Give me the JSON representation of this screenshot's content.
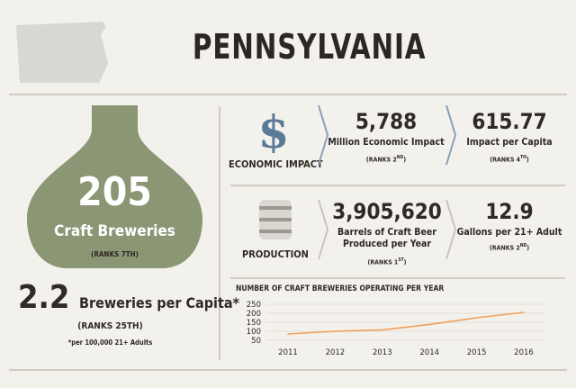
{
  "title": "PENNSYLVANIA",
  "breweries": {
    "count": "205",
    "label": "Craft Breweries",
    "rank": "(RANKS 7TH)"
  },
  "per_capita": {
    "value": "2.2",
    "label": "Breweries per Capita*",
    "rank": "(RANKS 25TH)",
    "note": "*per 100,000 21+ Adults"
  },
  "economic_impact": {
    "section_label": "ECONOMIC IMPACT",
    "icon": "dollar-icon",
    "metrics": [
      {
        "value": "5,788",
        "label": "Million Economic Impact",
        "rank": "(RANKS 2ND)"
      },
      {
        "value": "615.77",
        "label": "Impact per Capita",
        "rank": "(RANKS 4TH)"
      }
    ]
  },
  "production": {
    "section_label": "PRODUCTION",
    "icon": "keg-icon",
    "metrics": [
      {
        "value": "3,905,620",
        "label": "Barrels of Craft Beer Produced per Year",
        "rank": "(RANKS 1ST)"
      },
      {
        "value": "12.9",
        "label": "Gallons per 21+ Adult",
        "rank": "(RANKS 2ND)"
      }
    ]
  },
  "colors": {
    "bottle": "#8b9674",
    "dollar": "#5b7a98",
    "line": "#f0a05a",
    "rule": "#cfcbc3",
    "state_shape": "#d9d7d2"
  },
  "chart_data": {
    "type": "line",
    "title": "NUMBER OF CRAFT BREWERIES OPERATING PER YEAR",
    "categories": [
      "2011",
      "2012",
      "2013",
      "2014",
      "2015",
      "2016"
    ],
    "series": [
      {
        "values": [
          85,
          100,
          108,
          138,
          175,
          205
        ]
      }
    ],
    "yticks": [
      "250",
      "200",
      "150",
      "100",
      "50"
    ],
    "ylim": [
      50,
      250
    ],
    "grid": true
  }
}
